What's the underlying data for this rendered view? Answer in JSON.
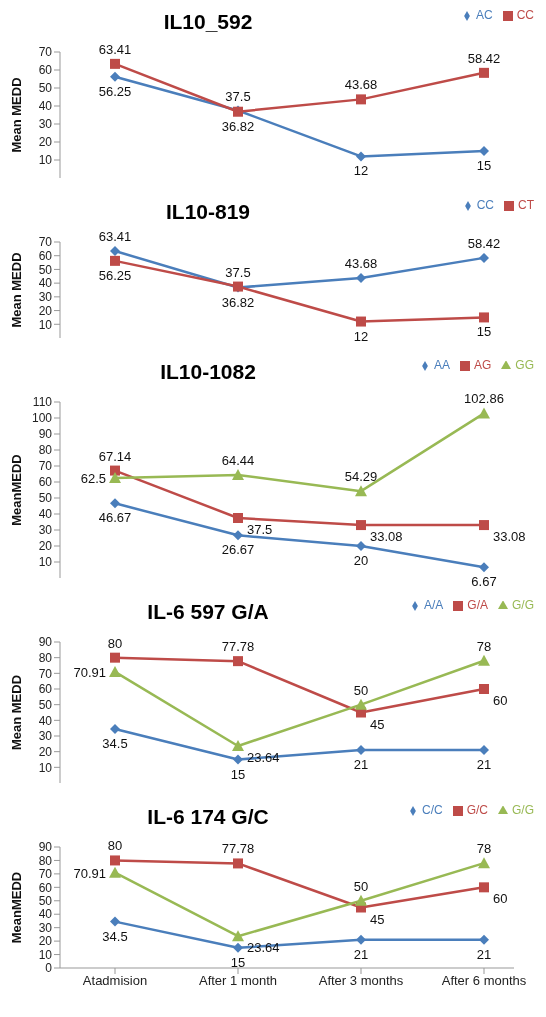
{
  "chart_data": [
    {
      "type": "line",
      "title": "IL10_592",
      "ylabel": "Mean MEDD",
      "categories": [
        null,
        null,
        null,
        null
      ],
      "tick_labels": "y",
      "ylim": [
        0,
        70
      ],
      "yticks": [
        10,
        20,
        30,
        40,
        50,
        60,
        70
      ],
      "legend": "top right",
      "data_labels": true,
      "grid": false,
      "series": [
        {
          "name": "AC",
          "color": "#4a7ebb",
          "marker": "diamond",
          "values": [
            56.25,
            37.5,
            12,
            15
          ]
        },
        {
          "name": "CC",
          "color": "#be4b48",
          "marker": "square",
          "values": [
            63.41,
            36.82,
            43.68,
            58.42
          ]
        }
      ]
    },
    {
      "type": "line",
      "title": "IL10-819",
      "ylabel": "Mean MEDD",
      "categories": [
        null,
        null,
        null,
        null
      ],
      "tick_labels": "y",
      "ylim": [
        0,
        70
      ],
      "yticks": [
        10,
        20,
        30,
        40,
        50,
        60,
        70
      ],
      "legend": "top right",
      "data_labels": true,
      "grid": false,
      "series": [
        {
          "name": "CC",
          "color": "#4a7ebb",
          "marker": "diamond",
          "values": [
            63.41,
            36.82,
            43.68,
            58.42
          ]
        },
        {
          "name": "CT",
          "color": "#be4b48",
          "marker": "square",
          "values": [
            56.25,
            37.5,
            12,
            15
          ]
        }
      ]
    },
    {
      "type": "line",
      "title": "IL10-1082",
      "ylabel": "MeanMEDD",
      "categories": [
        null,
        null,
        null,
        null
      ],
      "tick_labels": "y",
      "ylim": [
        0,
        110
      ],
      "yticks": [
        10,
        20,
        30,
        40,
        50,
        60,
        70,
        80,
        90,
        100,
        110
      ],
      "legend": "top right",
      "data_labels": true,
      "grid": false,
      "series": [
        {
          "name": "AA",
          "color": "#4a7ebb",
          "marker": "diamond",
          "values": [
            46.67,
            26.67,
            20,
            6.67
          ]
        },
        {
          "name": "AG",
          "color": "#be4b48",
          "marker": "square",
          "values": [
            67.14,
            37.5,
            33.08,
            33.08
          ]
        },
        {
          "name": "GG",
          "color": "#98b954",
          "marker": "triangle",
          "values": [
            62.5,
            64.44,
            54.29,
            102.86
          ]
        }
      ]
    },
    {
      "type": "line",
      "title": "IL-6 597 G/A",
      "ylabel": "Mean MEDD",
      "categories": [
        null,
        null,
        null,
        null
      ],
      "tick_labels": "y",
      "ylim": [
        0,
        90
      ],
      "yticks": [
        10,
        20,
        30,
        40,
        50,
        60,
        70,
        80,
        90
      ],
      "legend": "top right",
      "data_labels": true,
      "grid": false,
      "series": [
        {
          "name": "A/A",
          "color": "#4a7ebb",
          "marker": "diamond",
          "values": [
            34.5,
            15,
            21,
            21
          ]
        },
        {
          "name": "G/A",
          "color": "#be4b48",
          "marker": "square",
          "values": [
            80,
            77.78,
            45,
            60
          ]
        },
        {
          "name": "G/G",
          "color": "#98b954",
          "marker": "triangle",
          "values": [
            70.91,
            23.64,
            50,
            78
          ]
        }
      ]
    },
    {
      "type": "line",
      "title": "IL-6 174 G/C",
      "ylabel": "MeanMEDD",
      "categories": [
        "Atadmision",
        "After 1 month",
        "After 3 months",
        "After 6 months"
      ],
      "ylim": [
        0,
        90
      ],
      "yticks": [
        0,
        10,
        20,
        30,
        40,
        50,
        60,
        70,
        80,
        90
      ],
      "legend": "top right",
      "data_labels": true,
      "grid": false,
      "series": [
        {
          "name": "C/C",
          "color": "#4a7ebb",
          "marker": "diamond",
          "values": [
            34.5,
            15,
            21,
            21
          ]
        },
        {
          "name": "G/C",
          "color": "#be4b48",
          "marker": "square",
          "values": [
            80,
            77.78,
            45,
            60
          ]
        },
        {
          "name": "G/G",
          "color": "#98b954",
          "marker": "triangle",
          "values": [
            70.91,
            23.64,
            50,
            78
          ]
        }
      ]
    }
  ]
}
